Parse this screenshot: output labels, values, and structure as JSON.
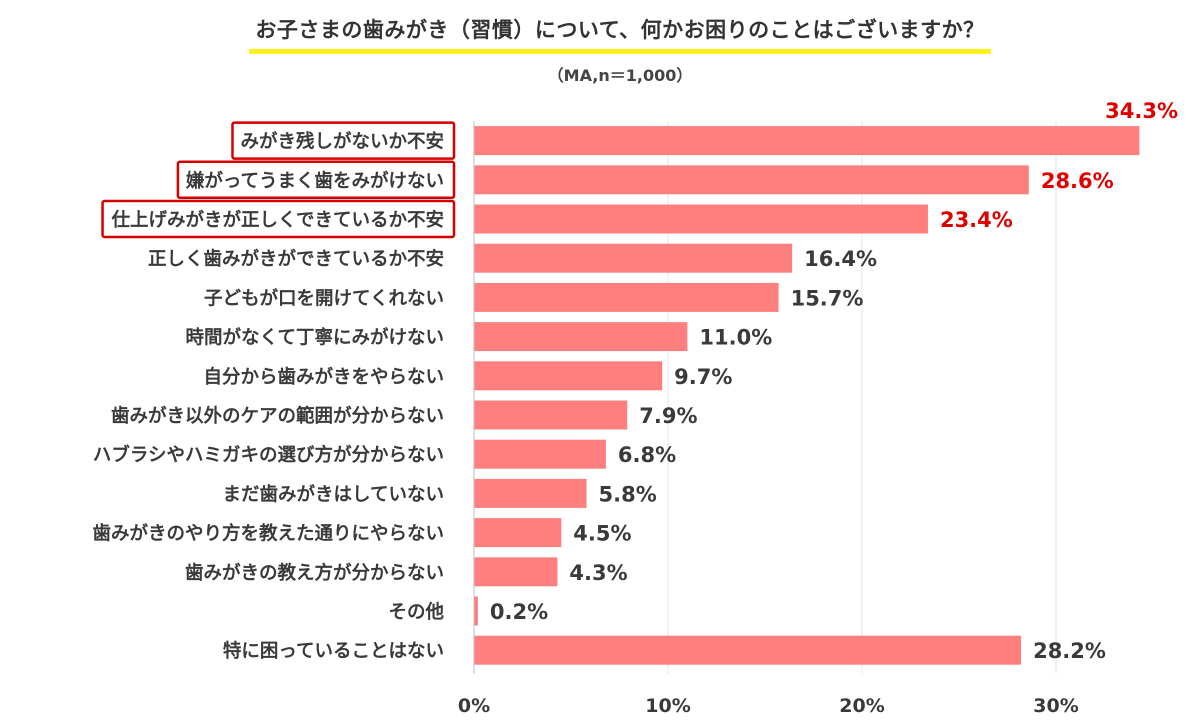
{
  "chart_data": {
    "type": "bar",
    "orientation": "horizontal",
    "title": "お子さまの歯みがき（習慣）について、何かお困りのことはございますか？",
    "subtitle": "（MA,n＝1,000）",
    "categories": [
      "みがき残しがないか不安",
      "嫌がってうまく歯をみがけない",
      "仕上げみがきが正しくできているか不安",
      "正しく歯みがきができているか不安",
      "子どもが口を開けてくれない",
      "時間がなくて丁寧にみがけない",
      "自分から歯みがきをやらない",
      "歯みがき以外のケアの範囲が分からない",
      "ハブラシやハミガキの選び方が分からない",
      "まだ歯みがきはしていない",
      "歯みがきのやり方を教えた通りにやらない",
      "歯みがきの教え方が分からない",
      "その他",
      "特に困っていることはない"
    ],
    "values": [
      34.3,
      28.6,
      23.4,
      16.4,
      15.7,
      11.0,
      9.7,
      7.9,
      6.8,
      5.8,
      4.5,
      4.3,
      0.2,
      28.2
    ],
    "value_labels": [
      "34.3%",
      "28.6%",
      "23.4%",
      "16.4%",
      "15.7%",
      "11.0%",
      "9.7%",
      "7.9%",
      "6.8%",
      "5.8%",
      "4.5%",
      "4.3%",
      "0.2%",
      "28.2%"
    ],
    "highlighted": [
      true,
      true,
      true,
      false,
      false,
      false,
      false,
      false,
      false,
      false,
      false,
      false,
      false,
      false
    ],
    "x_ticks": [
      0,
      10,
      20,
      30
    ],
    "x_tick_labels": [
      "0%",
      "10%",
      "20%",
      "30%"
    ],
    "xlim": [
      0,
      35
    ],
    "grid": true,
    "colors": {
      "bar": "#ff7f7f",
      "highlight_text": "#e00000",
      "highlight_box": "#d40000",
      "label_text": "#3a3a3a",
      "grid": "#e6e6e6",
      "title_underline": "#ffef1a"
    }
  }
}
